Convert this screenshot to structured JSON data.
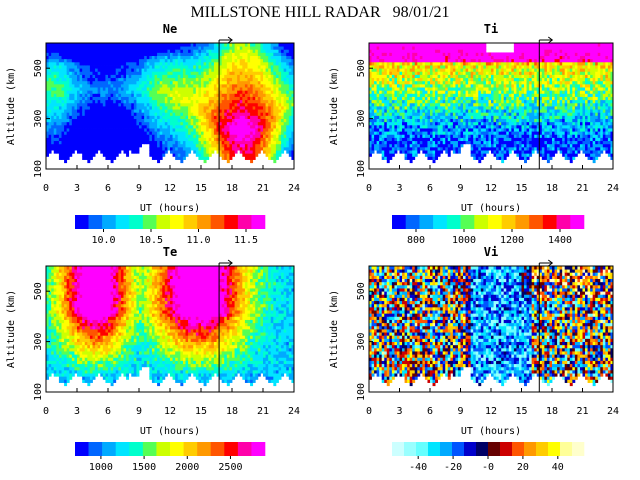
{
  "title": "MILLSTONE HILL RADAR   98/01/21",
  "chart_data": [
    {
      "type": "heatmap",
      "title": "Ne",
      "xlabel": "UT (hours)",
      "ylabel": "Altitude (km)",
      "xlim": [
        0,
        24
      ],
      "ylim": [
        100,
        600
      ],
      "xticks": [
        0,
        3,
        6,
        9,
        12,
        15,
        18,
        21,
        24
      ],
      "yticks": [
        100,
        300,
        500
      ],
      "marker_ut": 16.75,
      "colorbar": {
        "range": [
          9.7,
          11.7
        ],
        "ticks": [
          10.0,
          10.5,
          11.0,
          11.5
        ],
        "tick_labels": [
          "10.0",
          "10.5",
          "11.0",
          "11.5"
        ],
        "colors": [
          "#0000ff",
          "#0066ff",
          "#00aaff",
          "#00e5ff",
          "#00ffcc",
          "#55ff55",
          "#ccff00",
          "#ffff00",
          "#ffcc00",
          "#ff9900",
          "#ff5500",
          "#ff0000",
          "#ff00aa",
          "#ff00ff"
        ]
      }
    },
    {
      "type": "heatmap",
      "title": "Ti",
      "xlabel": "UT (hours)",
      "ylabel": "Altitude (km)",
      "xlim": [
        0,
        24
      ],
      "ylim": [
        100,
        600
      ],
      "xticks": [
        0,
        3,
        6,
        9,
        12,
        15,
        18,
        21,
        24
      ],
      "yticks": [
        100,
        300,
        500
      ],
      "marker_ut": 16.75,
      "colorbar": {
        "range": [
          700,
          1500
        ],
        "ticks": [
          800,
          1000,
          1200,
          1400
        ],
        "tick_labels": [
          "800",
          "1000",
          "1200",
          "1400"
        ],
        "colors": [
          "#0000ff",
          "#0066ff",
          "#00aaff",
          "#00e5ff",
          "#00ffcc",
          "#55ff55",
          "#ccff00",
          "#ffff00",
          "#ffcc00",
          "#ff9900",
          "#ff5500",
          "#ff0000",
          "#ff00aa",
          "#ff00ff"
        ]
      }
    },
    {
      "type": "heatmap",
      "title": "Te",
      "xlabel": "UT (hours)",
      "ylabel": "Altitude (km)",
      "xlim": [
        0,
        24
      ],
      "ylim": [
        100,
        600
      ],
      "xticks": [
        0,
        3,
        6,
        9,
        12,
        15,
        18,
        21,
        24
      ],
      "yticks": [
        100,
        300,
        500
      ],
      "marker_ut": 16.75,
      "colorbar": {
        "range": [
          700,
          2900
        ],
        "ticks": [
          1000,
          1500,
          2000,
          2500
        ],
        "tick_labels": [
          "1000",
          "1500",
          "2000",
          "2500"
        ],
        "colors": [
          "#0000ff",
          "#0066ff",
          "#00aaff",
          "#00e5ff",
          "#00ffcc",
          "#55ff55",
          "#ccff00",
          "#ffff00",
          "#ffcc00",
          "#ff9900",
          "#ff5500",
          "#ff0000",
          "#ff00aa",
          "#ff00ff"
        ]
      }
    },
    {
      "type": "heatmap",
      "title": "Vi",
      "xlabel": "UT (hours)",
      "ylabel": "Altitude (km)",
      "xlim": [
        0,
        24
      ],
      "ylim": [
        100,
        600
      ],
      "xticks": [
        0,
        3,
        6,
        9,
        12,
        15,
        18,
        21,
        24
      ],
      "yticks": [
        100,
        300,
        500
      ],
      "marker_ut": 16.75,
      "colorbar": {
        "range": [
          -55,
          55
        ],
        "ticks": [
          -40,
          -20,
          0,
          20,
          40
        ],
        "tick_labels": [
          "-40",
          "-20",
          "-0",
          "20",
          "40"
        ],
        "colors": [
          "#ccffff",
          "#99ffff",
          "#66ffff",
          "#00e5ff",
          "#00aaff",
          "#0055ff",
          "#0000cc",
          "#000066",
          "#660000",
          "#cc0000",
          "#ff5500",
          "#ff9900",
          "#ffcc00",
          "#ffff00",
          "#ffff99",
          "#ffffcc"
        ]
      }
    }
  ]
}
